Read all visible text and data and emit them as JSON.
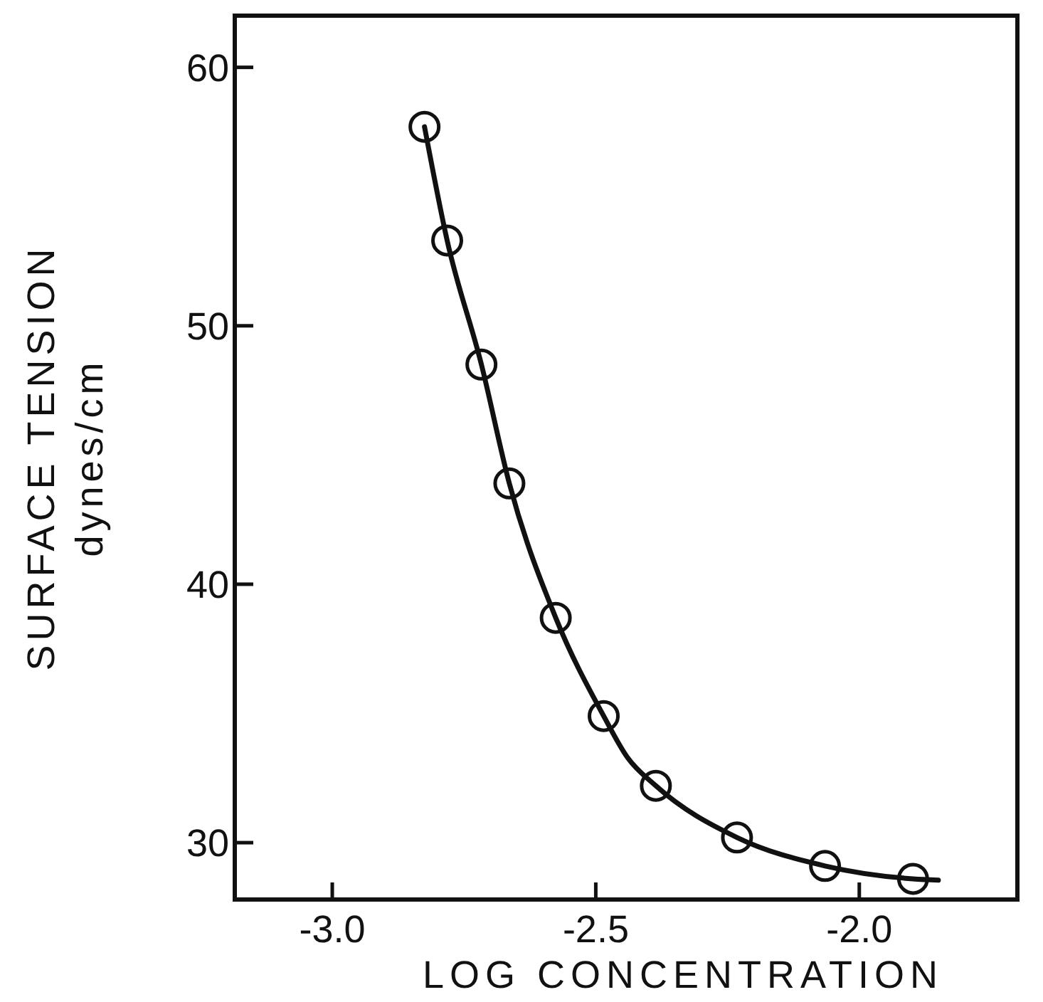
{
  "chart_data": {
    "type": "scatter",
    "xlabel": "LOG  CONCENTRATION",
    "ylabel": "SURFACE TENSION\ndynes/cm",
    "xlim": [
      -3.185,
      -1.7
    ],
    "ylim": [
      27.8,
      62
    ],
    "xticks": [
      {
        "value": -3,
        "label": "-3.0"
      },
      {
        "value": -2.5,
        "label": "-2.5"
      },
      {
        "value": -2,
        "label": "-2.0"
      }
    ],
    "yticks": [
      30,
      40,
      50,
      60
    ],
    "grid": false,
    "series": [
      {
        "color": "#111111",
        "marker": "circle",
        "x": [
          -2.825,
          -2.782,
          -2.717,
          -2.664,
          -2.576,
          -2.485,
          -2.386,
          -2.232,
          -2.065,
          -1.898
        ],
        "values": [
          57.7,
          53.3,
          48.5,
          43.9,
          38.7,
          34.9,
          32.2,
          30.2,
          29.1,
          28.6
        ]
      },
      {
        "type": "line",
        "color": "#111111",
        "line_style": "solid",
        "x": [
          -2.825,
          -2.782,
          -2.717,
          -2.664,
          -2.576,
          -2.485,
          -2.44,
          -2.386,
          -2.232,
          -2.065,
          -1.898,
          -1.85
        ],
        "values": [
          57.7,
          53.3,
          48.5,
          43.9,
          38.7,
          34.9,
          33.3,
          32.2,
          30.2,
          29.1,
          28.6,
          28.55
        ]
      }
    ]
  }
}
